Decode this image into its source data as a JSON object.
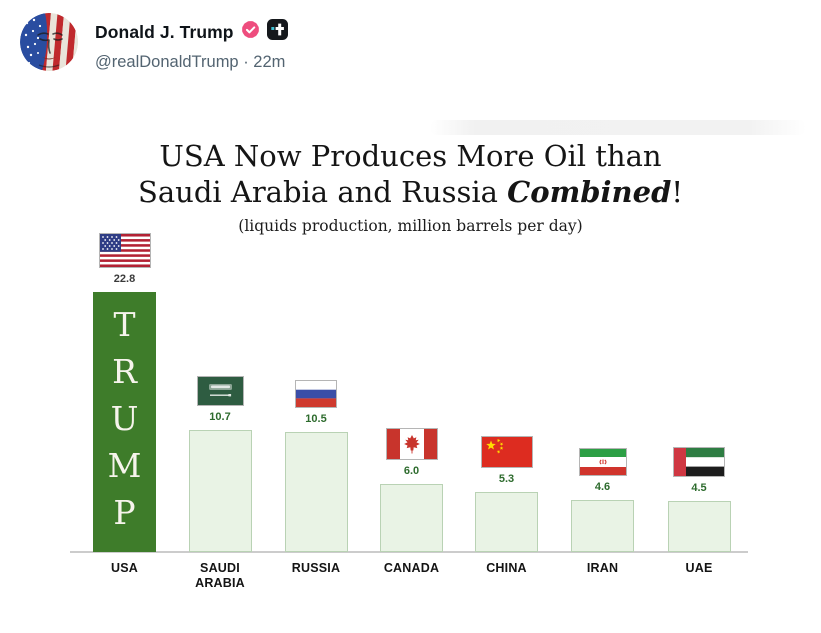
{
  "tweet": {
    "display_name": "Donald J. Trump",
    "handle_line": "@realDonaldTrump · 22m",
    "badges": {
      "verified_icon": "pink-verified-seal",
      "affiliate_icon": "truth-social-plus-badge"
    }
  },
  "chart_data": {
    "type": "bar",
    "title_line1": "USA Now Produces More Oil than",
    "title_line2_prefix": "Saudi Arabia and Russia ",
    "title_line2_emphasis": "Combined",
    "title_line2_suffix": "!",
    "subtitle": "(liquids production, million barrels per day)",
    "categories": [
      "USA",
      "SAUDI ARABIA",
      "RUSSIA",
      "CANADA",
      "CHINA",
      "IRAN",
      "UAE"
    ],
    "values": [
      22.8,
      10.7,
      10.5,
      6.0,
      5.3,
      4.6,
      4.5
    ],
    "ylim": [
      0,
      24
    ],
    "grid": false,
    "legend": false,
    "countries": [
      {
        "label": "USA",
        "value": 22.8,
        "value_label": "22.8",
        "flag": "usa-flag",
        "bar_text": "T\nR\nU\nM\nP"
      },
      {
        "label": "SAUDI\nARABIA",
        "value": 10.7,
        "value_label": "10.7",
        "flag": "saudi-arabia-flag"
      },
      {
        "label": "RUSSIA",
        "value": 10.5,
        "value_label": "10.5",
        "flag": "russia-flag"
      },
      {
        "label": "CANADA",
        "value": 6.0,
        "value_label": "6.0",
        "flag": "canada-flag"
      },
      {
        "label": "CHINA",
        "value": 5.3,
        "value_label": "5.3",
        "flag": "china-flag"
      },
      {
        "label": "IRAN",
        "value": 4.6,
        "value_label": "4.6",
        "flag": "iran-flag"
      },
      {
        "label": "UAE",
        "value": 4.5,
        "value_label": "4.5",
        "flag": "uae-flag"
      }
    ],
    "colors": {
      "usa_bar": "#3e7c2a",
      "other_bar_fill": "#e9f3e5",
      "other_bar_border": "#b9d2b4",
      "value_label_green": "#2d6b2d",
      "usa_value_label": "#3a3a3a",
      "axis_line": "#cccccc",
      "verified_badge": "#ee4d7e"
    }
  }
}
